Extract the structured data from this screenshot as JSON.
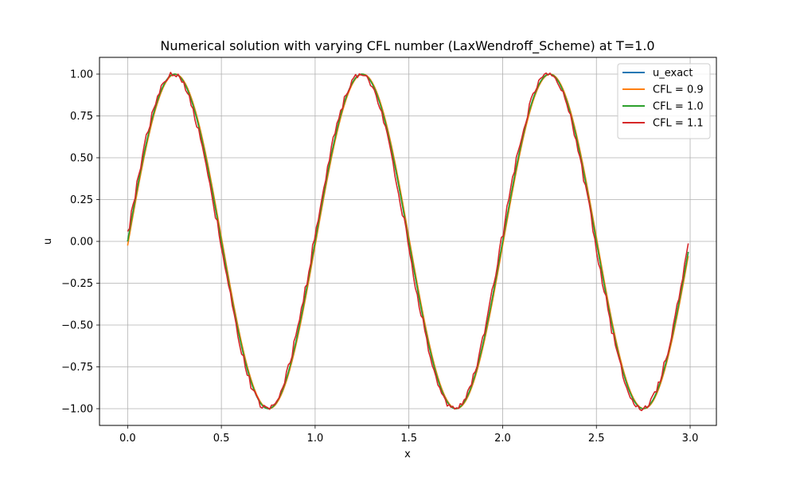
{
  "chart_data": {
    "type": "line",
    "title": "Numerical solution with varying CFL number (LaxWendroff_Scheme) at T=1.0",
    "xlabel": "x",
    "ylabel": "u",
    "xlim": [
      -0.15,
      3.14
    ],
    "ylim": [
      -1.1,
      1.1
    ],
    "xticks": [
      0.0,
      0.5,
      1.0,
      1.5,
      2.0,
      2.5,
      3.0
    ],
    "xtick_labels": [
      "0.0",
      "0.5",
      "1.0",
      "1.5",
      "2.0",
      "2.5",
      "3.0"
    ],
    "yticks": [
      -1.0,
      -0.75,
      -0.5,
      -0.25,
      0.0,
      0.25,
      0.5,
      0.75,
      1.0
    ],
    "ytick_labels": [
      "−1.00",
      "−0.75",
      "−0.50",
      "−0.25",
      "0.00",
      "0.25",
      "0.50",
      "0.75",
      "1.00"
    ],
    "grid": true,
    "legend_position": "top-right",
    "x_range": [
      0.0,
      2.99
    ],
    "curve": "sin(2*pi*x)",
    "series": [
      {
        "name": "u_exact",
        "color": "#1f77b4",
        "phase_shift": 0.0,
        "noise": 0.0
      },
      {
        "name": "CFL = 0.9",
        "color": "#ff7f0e",
        "phase_shift": 0.004,
        "noise": 0.0
      },
      {
        "name": "CFL = 1.0",
        "color": "#2ca02c",
        "phase_shift": 0.0,
        "noise": 0.0
      },
      {
        "name": "CFL = 1.1",
        "color": "#d62728",
        "phase_shift": -0.006,
        "noise": 0.03
      }
    ]
  }
}
